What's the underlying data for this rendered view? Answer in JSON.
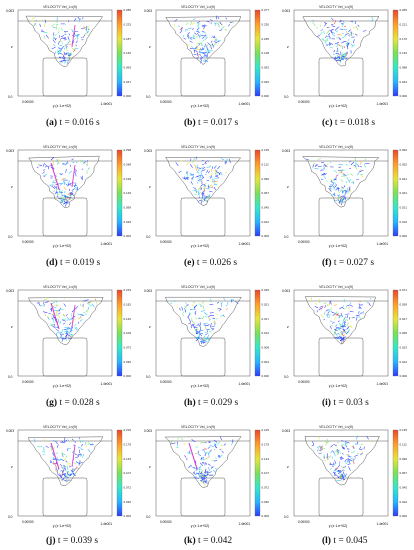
{
  "figure": {
    "plot_header_text": "VELOCITY  Vel_Ln(9)",
    "axis_origin_label": "0.00000",
    "axis_end_label": "1.4e001",
    "x_axis_label": "y (x 1.e+02)",
    "y_axis_label": "z",
    "y_axis_top_label": "0.003",
    "y_axis_bottom_label": "0.0",
    "colormap": [
      "#2b3bff",
      "#26b7ff",
      "#35e8c7",
      "#7be05a",
      "#e6e53a",
      "#ff9d2a",
      "#e8472b"
    ],
    "panels": [
      {
        "id": "a",
        "letter": "(a)",
        "time": "t = 0.016 s",
        "scale_ticks": [
          "0.280",
          "0.233",
          "0.187",
          "0.140",
          "0.093",
          "0.047",
          "0.000"
        ]
      },
      {
        "id": "b",
        "letter": "(b)",
        "time": "t = 0.017 s",
        "scale_ticks": [
          "0.277",
          "0.230",
          "0.185",
          "0.138",
          "0.092",
          "0.046",
          "0.000"
        ]
      },
      {
        "id": "c",
        "letter": "(c)",
        "time": "t = 0.018 s",
        "scale_ticks": [
          "0.265",
          "0.221",
          "0.176",
          "0.132",
          "0.088",
          "0.044",
          "0.000"
        ]
      },
      {
        "id": "d",
        "letter": "(d)",
        "time": "t = 0.019 s",
        "scale_ticks": [
          "0.298",
          "0.248",
          "0.199",
          "0.149",
          "0.099",
          "0.049",
          "0.000"
        ]
      },
      {
        "id": "e",
        "letter": "(e)",
        "time": "t = 0.026 s",
        "scale_ticks": [
          "0.135",
          "0.112",
          "0.090",
          "0.067",
          "0.045",
          "0.022",
          "0.000"
        ]
      },
      {
        "id": "f",
        "letter": "(f)",
        "time": "t = 0.027 s",
        "scale_ticks": [
          "0.062",
          "0.052",
          "0.041",
          "0.031",
          "0.021",
          "0.010",
          "0.000"
        ]
      },
      {
        "id": "g",
        "letter": "(g)",
        "time": "t = 0.028 s",
        "scale_ticks": [
          "0.219",
          "0.182",
          "0.146",
          "0.109",
          "0.073",
          "0.036",
          "0.000"
        ]
      },
      {
        "id": "h",
        "letter": "(h)",
        "time": "t = 0.029 s",
        "scale_ticks": [
          "0.025",
          "0.021",
          "0.017",
          "0.012",
          "0.008",
          "0.004",
          "0.000"
        ]
      },
      {
        "id": "i",
        "letter": "(i)",
        "time": "t = 0.03 s",
        "scale_ticks": [
          "0.071",
          "0.059",
          "0.047",
          "0.035",
          "0.023",
          "0.012",
          "0.000"
        ]
      },
      {
        "id": "j",
        "letter": "(j)",
        "time": "t = 0.039 s",
        "scale_ticks": [
          "0.215",
          "0.179",
          "0.143",
          "0.107",
          "0.072",
          "0.036",
          "0.000"
        ]
      },
      {
        "id": "k",
        "letter": "(k)",
        "time": "t = 0.042",
        "scale_ticks": [
          "0.215",
          "0.179",
          "0.143",
          "0.107",
          "0.072",
          "0.036",
          "0.000"
        ]
      },
      {
        "id": "l",
        "letter": "(l)",
        "time": "t = 0.045",
        "scale_ticks": [
          "0.135",
          "0.112",
          "0.090",
          "0.067",
          "0.045",
          "0.022",
          "0.000"
        ]
      }
    ]
  }
}
